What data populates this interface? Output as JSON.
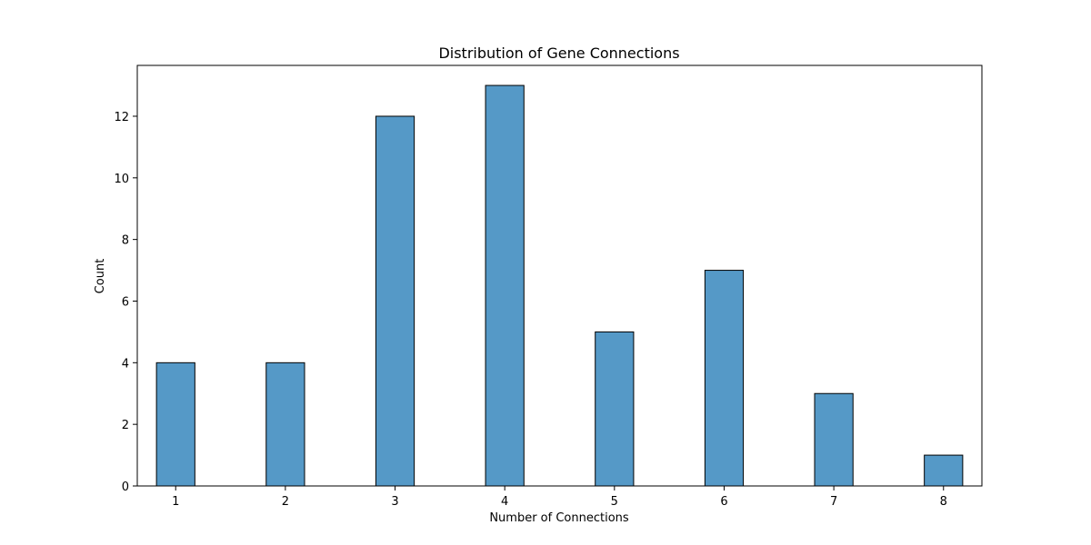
{
  "chart_data": {
    "type": "bar",
    "title": "Distribution of Gene Connections",
    "xlabel": "Number of Connections",
    "ylabel": "Count",
    "x_ticks": [
      1,
      2,
      3,
      4,
      5,
      6,
      7,
      8
    ],
    "y_ticks": [
      0,
      2,
      4,
      6,
      8,
      10,
      12
    ],
    "xlim": [
      0.65,
      8.35
    ],
    "ylim": [
      0,
      13.65
    ],
    "bar_width": 0.35,
    "bars": [
      {
        "x": 1,
        "value": 4
      },
      {
        "x": 2,
        "value": 4
      },
      {
        "x": 3,
        "value": 12
      },
      {
        "x": 4,
        "value": 13
      },
      {
        "x": 5,
        "value": 5
      },
      {
        "x": 6,
        "value": 7
      },
      {
        "x": 7,
        "value": 3
      },
      {
        "x": 8,
        "value": 1
      }
    ],
    "grid": false,
    "bar_color": "#5599c7",
    "edge_color": "#000000"
  }
}
